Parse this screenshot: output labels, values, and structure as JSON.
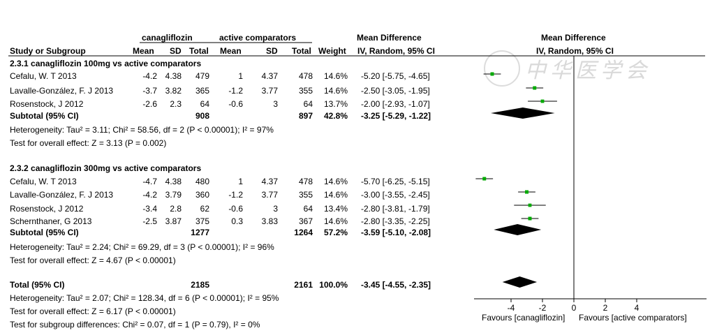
{
  "headers": {
    "group1": "canagliflozin",
    "group2": "active comparators",
    "md_left": "Mean Difference",
    "md_right": "Mean Difference",
    "study": "Study or Subgroup",
    "mean1": "Mean",
    "sd1": "SD",
    "total1": "Total",
    "mean2": "Mean",
    "sd2": "SD",
    "total2": "Total",
    "weight": "Weight",
    "method_left": "IV, Random, 95% CI",
    "method_right": "IV, Random, 95% CI"
  },
  "subgroups": [
    {
      "title": "2.3.1 canagliflozin 100mg vs active comparators",
      "studies": [
        {
          "name": "Cefalu, W. T 2013",
          "mean1": "-4.2",
          "sd1": "4.38",
          "n1": "479",
          "mean2": "1",
          "sd2": "4.37",
          "n2": "478",
          "weight": "14.6%",
          "ci_text": "-5.20 [-5.75, -4.65]"
        },
        {
          "name": "Lavalle-González, F. J 2013",
          "mean1": "-3.7",
          "sd1": "3.82",
          "n1": "365",
          "mean2": "-1.2",
          "sd2": "3.77",
          "n2": "355",
          "weight": "14.6%",
          "ci_text": "-2.50 [-3.05, -1.95]"
        },
        {
          "name": "Rosenstock, J 2012",
          "mean1": "-2.6",
          "sd1": "2.3",
          "n1": "64",
          "mean2": "-0.6",
          "sd2": "3",
          "n2": "64",
          "weight": "13.7%",
          "ci_text": "-2.00 [-2.93, -1.07]"
        }
      ],
      "subtotal": {
        "label": "Subtotal (95% CI)",
        "n1": "908",
        "n2": "897",
        "weight": "42.8%",
        "ci_text": "-3.25 [-5.29, -1.22]"
      },
      "heterogeneity": "Heterogeneity: Tau² = 3.11; Chi² = 58.56, df = 2 (P < 0.00001); I² = 97%",
      "overall": "Test for overall effect: Z = 3.13 (P = 0.002)"
    },
    {
      "title": "2.3.2 canagliflozin 300mg vs active comparators",
      "studies": [
        {
          "name": "Cefalu, W. T 2013",
          "mean1": "-4.7",
          "sd1": "4.38",
          "n1": "480",
          "mean2": "1",
          "sd2": "4.37",
          "n2": "478",
          "weight": "14.6%",
          "ci_text": "-5.70 [-6.25, -5.15]"
        },
        {
          "name": "Lavalle-González, F. J 2013",
          "mean1": "-4.2",
          "sd1": "3.79",
          "n1": "360",
          "mean2": "-1.2",
          "sd2": "3.77",
          "n2": "355",
          "weight": "14.6%",
          "ci_text": "-3.00 [-3.55, -2.45]"
        },
        {
          "name": "Rosenstock, J 2012",
          "mean1": "-3.4",
          "sd1": "2.8",
          "n1": "62",
          "mean2": "-0.6",
          "sd2": "3",
          "n2": "64",
          "weight": "13.4%",
          "ci_text": "-2.80 [-3.81, -1.79]"
        },
        {
          "name": "Schernthaner, G 2013",
          "mean1": "-2.5",
          "sd1": "3.87",
          "n1": "375",
          "mean2": "0.3",
          "sd2": "3.83",
          "n2": "367",
          "weight": "14.6%",
          "ci_text": "-2.80 [-3.35, -2.25]"
        }
      ],
      "subtotal": {
        "label": "Subtotal (95% CI)",
        "n1": "1277",
        "n2": "1264",
        "weight": "57.2%",
        "ci_text": "-3.59 [-5.10, -2.08]"
      },
      "heterogeneity": "Heterogeneity: Tau² = 2.24; Chi² = 69.29, df = 3 (P < 0.00001); I² = 96%",
      "overall": "Test for overall effect: Z = 4.67 (P < 0.00001)"
    }
  ],
  "total": {
    "label": "Total (95% CI)",
    "n1": "2185",
    "n2": "2161",
    "weight": "100.0%",
    "ci_text": "-3.45 [-4.55, -2.35]"
  },
  "footer": {
    "heterogeneity": "Heterogeneity: Tau² = 2.07; Chi² = 128.34, df = 6 (P < 0.00001); I² = 95%",
    "overall": "Test for overall effect: Z = 6.17 (P < 0.00001)",
    "subgroup_diff": "Test for subgroup differences: Chi² = 0.07, df = 1 (P = 0.79), I² = 0%"
  },
  "axis": {
    "ticks": [
      "-4",
      "-2",
      "0",
      "2",
      "4"
    ],
    "favours_left": "Favours [canagliflozin]",
    "favours_right": "Favours [active comparators]"
  },
  "watermark": "中华医学会",
  "chart_data": {
    "type": "forest",
    "xlim": [
      -6,
      8
    ],
    "ticks": [
      -4,
      -2,
      0,
      2,
      4
    ],
    "null_line": 0,
    "colors": {
      "point": "#00aa00",
      "line": "#000000",
      "diamond": "#000000"
    },
    "studies": [
      {
        "mean": -5.2,
        "lo": -5.75,
        "hi": -4.65,
        "weight": 14.6
      },
      {
        "mean": -2.5,
        "lo": -3.05,
        "hi": -1.95,
        "weight": 14.6
      },
      {
        "mean": -2.0,
        "lo": -2.93,
        "hi": -1.07,
        "weight": 13.7
      },
      {
        "mean": -5.7,
        "lo": -6.25,
        "hi": -5.15,
        "weight": 14.6
      },
      {
        "mean": -3.0,
        "lo": -3.55,
        "hi": -2.45,
        "weight": 14.6
      },
      {
        "mean": -2.8,
        "lo": -3.81,
        "hi": -1.79,
        "weight": 13.4
      },
      {
        "mean": -2.8,
        "lo": -3.35,
        "hi": -2.25,
        "weight": 14.6
      }
    ],
    "pooled": [
      {
        "mean": -3.25,
        "lo": -5.29,
        "hi": -1.22
      },
      {
        "mean": -3.59,
        "lo": -5.1,
        "hi": -2.08
      },
      {
        "mean": -3.45,
        "lo": -4.55,
        "hi": -2.35
      }
    ]
  }
}
